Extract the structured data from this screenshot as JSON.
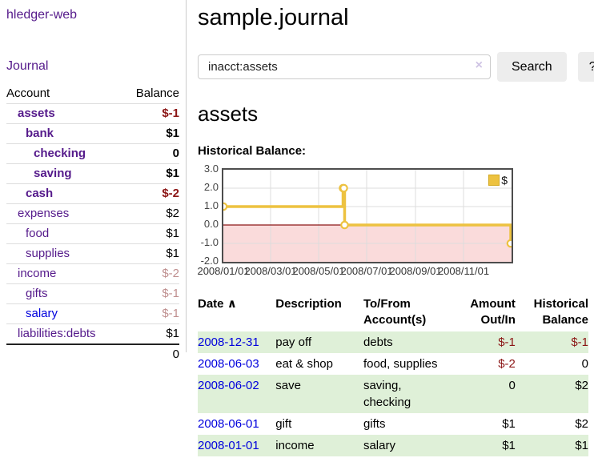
{
  "app": {
    "title": "hledger-web",
    "nav_journal": "Journal"
  },
  "sidebar": {
    "header": {
      "account": "Account",
      "balance": "Balance"
    },
    "accounts": [
      {
        "name": "assets",
        "depth": 1,
        "balance": "$-1",
        "bold": true,
        "neg": "strong"
      },
      {
        "name": "bank",
        "depth": 2,
        "balance": "$1",
        "bold": true,
        "neg": ""
      },
      {
        "name": "checking",
        "depth": 3,
        "balance": "0",
        "bold": true,
        "neg": ""
      },
      {
        "name": "saving",
        "depth": 3,
        "balance": "$1",
        "bold": true,
        "neg": ""
      },
      {
        "name": "cash",
        "depth": 2,
        "balance": "$-2",
        "bold": true,
        "neg": "strong"
      },
      {
        "name": "expenses",
        "depth": 1,
        "balance": "$2",
        "bold": false,
        "neg": ""
      },
      {
        "name": "food",
        "depth": 2,
        "balance": "$1",
        "bold": false,
        "neg": ""
      },
      {
        "name": "supplies",
        "depth": 2,
        "balance": "$1",
        "bold": false,
        "neg": ""
      },
      {
        "name": "income",
        "depth": 1,
        "balance": "$-2",
        "bold": false,
        "neg": "soft"
      },
      {
        "name": "gifts",
        "depth": 2,
        "balance": "$-1",
        "bold": false,
        "neg": "soft"
      },
      {
        "name": "salary",
        "depth": 2,
        "balance": "$-1",
        "bold": false,
        "neg": "soft",
        "link_style": "blue"
      },
      {
        "name": "liabilities:debts",
        "depth": 1,
        "balance": "$1",
        "bold": false,
        "neg": ""
      }
    ],
    "total": "0"
  },
  "header": {
    "title": "sample.journal"
  },
  "search": {
    "value": "inacct:assets",
    "clear_icon": "×",
    "button": "Search",
    "help_button": "?"
  },
  "main": {
    "heading": "assets",
    "chart_label": "Historical Balance:"
  },
  "chart_data": {
    "type": "line",
    "step": true,
    "title": "Historical Balance:",
    "series": [
      {
        "name": "$",
        "color": "#EDC240",
        "points": [
          [
            "2008-01-01",
            1
          ],
          [
            "2008-06-01",
            2
          ],
          [
            "2008-06-02",
            2
          ],
          [
            "2008-06-03",
            0
          ],
          [
            "2008-12-31",
            -1
          ]
        ]
      }
    ],
    "x_range": [
      "2008-01-01",
      "2009-01-01"
    ],
    "x_tick_labels": [
      "2008/01/01",
      "2008/03/01",
      "2008/05/01",
      "2008/07/01",
      "2008/09/01",
      "2008/11/01"
    ],
    "y_ticks": [
      3.0,
      2.0,
      1.0,
      0.0,
      -1.0,
      -2.0
    ],
    "ylim": [
      -2,
      3
    ],
    "grid": true,
    "legend": {
      "label": "$",
      "position": "top-right"
    },
    "negative_region_color": "#fadbdb",
    "zero_line_color": "#8c1616",
    "line_color": "#EDC240",
    "grid_color": "#dddddd",
    "border_color": "#4d4d4d"
  },
  "register": {
    "headers": {
      "date": "Date",
      "sort_icon": "∧",
      "description": "Description",
      "accounts": "To/From Account(s)",
      "amount": "Amount Out/In",
      "balance": "Historical Balance"
    },
    "rows": [
      {
        "date": "2008-12-31",
        "description": "pay off",
        "accounts": "debts",
        "amount": "$-1",
        "amount_neg": true,
        "balance": "$-1",
        "balance_neg": true
      },
      {
        "date": "2008-06-03",
        "description": "eat & shop",
        "accounts": "food, supplies",
        "amount": "$-2",
        "amount_neg": true,
        "balance": "0",
        "balance_neg": false
      },
      {
        "date": "2008-06-02",
        "description": "save",
        "accounts": "saving, checking",
        "amount": "0",
        "amount_neg": false,
        "balance": "$2",
        "balance_neg": false
      },
      {
        "date": "2008-06-01",
        "description": "gift",
        "accounts": "gifts",
        "amount": "$1",
        "amount_neg": false,
        "balance": "$2",
        "balance_neg": false
      },
      {
        "date": "2008-01-01",
        "description": "income",
        "accounts": "salary",
        "amount": "$1",
        "amount_neg": false,
        "balance": "$1",
        "balance_neg": false
      }
    ]
  }
}
